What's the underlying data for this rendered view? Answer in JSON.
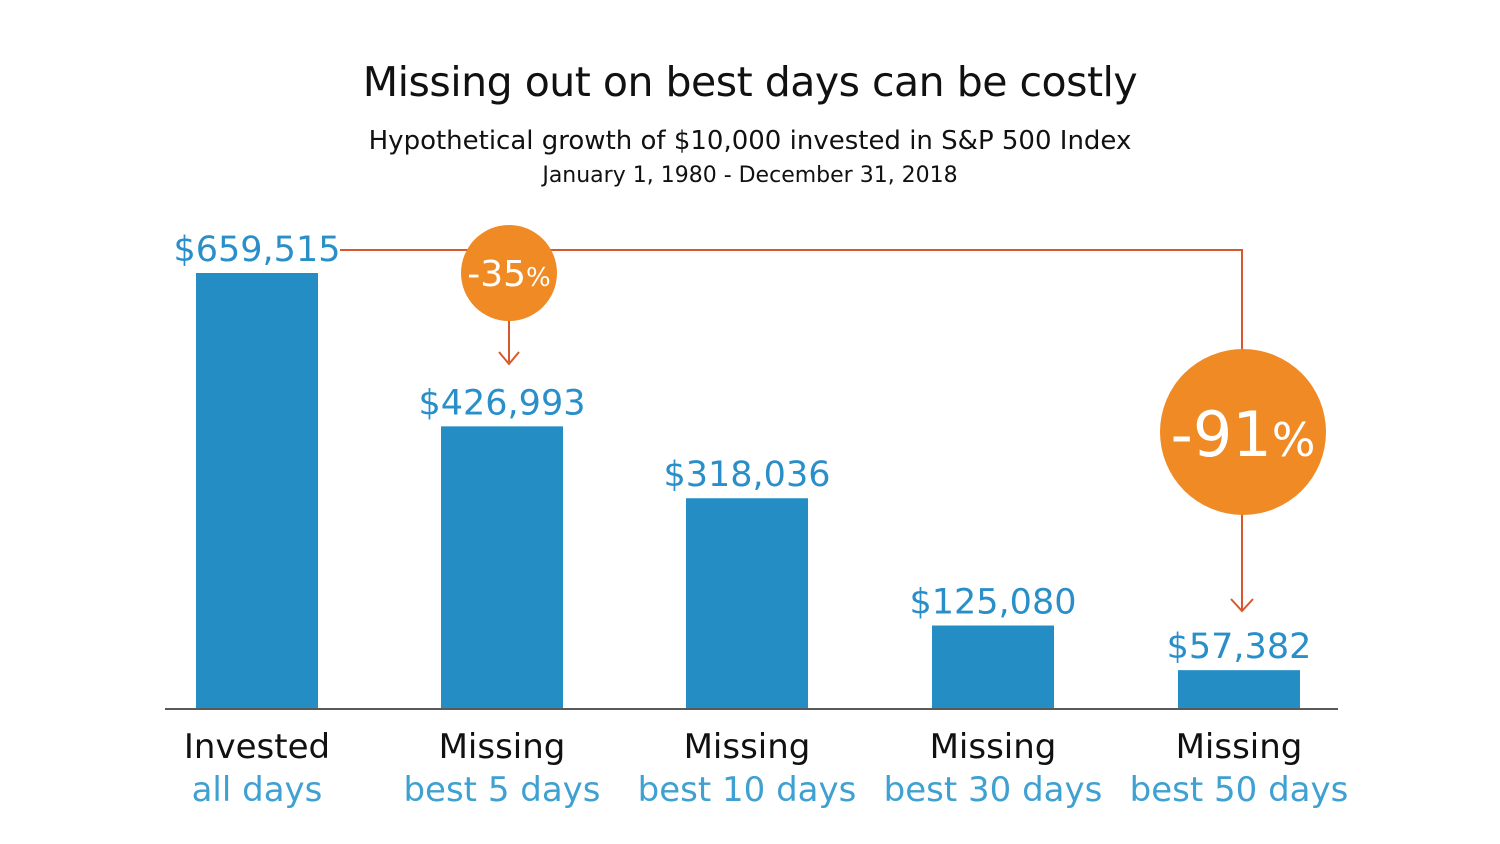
{
  "title": "Missing out on best days can be costly",
  "subtitle": "Hypothetical growth of $10,000 invested in S&P 500 Index",
  "date_range": "January 1, 1980 - December 31, 2018",
  "colors": {
    "bar": "#248dc4",
    "value_label": "#2a8fc9",
    "category_secondary": "#3fa0d2",
    "callout_circle": "#f08a24",
    "connector": "#d9582b",
    "axis": "#222222"
  },
  "chart_data": {
    "type": "bar",
    "categories": [
      {
        "line1": "Invested",
        "line2": "all days"
      },
      {
        "line1": "Missing",
        "line2": "best 5 days"
      },
      {
        "line1": "Missing",
        "line2": "best 10 days"
      },
      {
        "line1": "Missing",
        "line2": "best 30 days"
      },
      {
        "line1": "Missing",
        "line2": "best 50 days"
      }
    ],
    "values": [
      659515,
      426993,
      318036,
      125080,
      57382
    ],
    "value_labels": [
      "$659,515",
      "$426,993",
      "$318,036",
      "$125,080",
      "$57,382"
    ],
    "ylim": [
      0,
      659515
    ],
    "grid": false,
    "legend": "none",
    "annotations": [
      {
        "label": "-35",
        "suffix": "%",
        "from_category": 0,
        "to_category": 1
      },
      {
        "label": "-91",
        "suffix": "%",
        "from_category": 0,
        "to_category": 4
      }
    ]
  }
}
